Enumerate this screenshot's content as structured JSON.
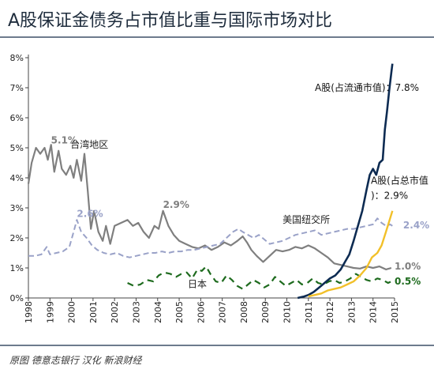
{
  "title": "A股保证金债务占市值比重与国际市场对比",
  "source": "原图 德意志银行  汉化 新浪财经",
  "colors": {
    "taiwan": "#7f7f7f",
    "nyse": "#9aa2c8",
    "japan": "#1e6b1e",
    "a_float": "#0d2b52",
    "a_total": "#f2c029",
    "axis": "#444444",
    "title_rule": "#6d7b8d"
  },
  "chart_data": {
    "type": "line",
    "title": "A股保证金债务占市值比重与国际市场对比",
    "xlabel": "",
    "ylabel": "",
    "xlim": [
      1998,
      2015
    ],
    "ylim": [
      0,
      8
    ],
    "x_ticks": [
      "1998",
      "1999",
      "2000",
      "2001",
      "2002",
      "2003",
      "2004",
      "2005",
      "2006",
      "2007",
      "2008",
      "2009",
      "2010",
      "2011",
      "2012",
      "2013",
      "2014",
      "2015"
    ],
    "y_ticks": [
      "0%",
      "1%",
      "2%",
      "3%",
      "4%",
      "5%",
      "6%",
      "7%",
      "8%"
    ],
    "grid": false,
    "series": [
      {
        "name": "台湾地区",
        "style": "solid",
        "points": [
          [
            1998,
            3.8
          ],
          [
            1998.15,
            4.5
          ],
          [
            1998.35,
            5.0
          ],
          [
            1998.55,
            4.8
          ],
          [
            1998.75,
            5.0
          ],
          [
            1998.9,
            4.6
          ],
          [
            1999.05,
            5.1
          ],
          [
            1999.2,
            4.2
          ],
          [
            1999.4,
            4.9
          ],
          [
            1999.55,
            4.3
          ],
          [
            1999.75,
            4.1
          ],
          [
            1999.95,
            4.4
          ],
          [
            2000.1,
            4.0
          ],
          [
            2000.25,
            4.6
          ],
          [
            2000.45,
            3.9
          ],
          [
            2000.6,
            4.8
          ],
          [
            2000.75,
            3.6
          ],
          [
            2000.9,
            2.3
          ],
          [
            2001.05,
            2.9
          ],
          [
            2001.25,
            2.2
          ],
          [
            2001.45,
            1.9
          ],
          [
            2001.6,
            2.4
          ],
          [
            2001.8,
            1.8
          ],
          [
            2002.0,
            2.4
          ],
          [
            2002.3,
            2.5
          ],
          [
            2002.6,
            2.6
          ],
          [
            2002.85,
            2.4
          ],
          [
            2003.1,
            2.5
          ],
          [
            2003.35,
            2.2
          ],
          [
            2003.6,
            2.0
          ],
          [
            2003.85,
            2.4
          ],
          [
            2004.05,
            2.3
          ],
          [
            2004.25,
            2.9
          ],
          [
            2004.5,
            2.4
          ],
          [
            2004.75,
            2.1
          ],
          [
            2005.0,
            1.9
          ],
          [
            2005.3,
            1.8
          ],
          [
            2005.6,
            1.7
          ],
          [
            2005.9,
            1.65
          ],
          [
            2006.2,
            1.75
          ],
          [
            2006.5,
            1.6
          ],
          [
            2006.8,
            1.7
          ],
          [
            2007.1,
            1.85
          ],
          [
            2007.4,
            1.75
          ],
          [
            2007.7,
            1.9
          ],
          [
            2007.95,
            2.05
          ],
          [
            2008.15,
            1.85
          ],
          [
            2008.35,
            1.6
          ],
          [
            2008.6,
            1.4
          ],
          [
            2008.9,
            1.2
          ],
          [
            2009.2,
            1.4
          ],
          [
            2009.5,
            1.6
          ],
          [
            2009.8,
            1.55
          ],
          [
            2010.1,
            1.6
          ],
          [
            2010.4,
            1.7
          ],
          [
            2010.7,
            1.65
          ],
          [
            2011.0,
            1.75
          ],
          [
            2011.3,
            1.65
          ],
          [
            2011.6,
            1.5
          ],
          [
            2011.9,
            1.35
          ],
          [
            2012.2,
            1.15
          ],
          [
            2012.5,
            1.1
          ],
          [
            2012.8,
            1.05
          ],
          [
            2013.1,
            1.0
          ],
          [
            2013.4,
            0.98
          ],
          [
            2013.7,
            1.05
          ],
          [
            2014.0,
            1.0
          ],
          [
            2014.3,
            1.05
          ],
          [
            2014.6,
            0.95
          ],
          [
            2014.85,
            1.0
          ]
        ]
      },
      {
        "name": "美国纽交所",
        "style": "dashed",
        "points": [
          [
            1998,
            1.4
          ],
          [
            1998.3,
            1.4
          ],
          [
            1998.6,
            1.45
          ],
          [
            1998.85,
            1.7
          ],
          [
            1999.0,
            1.45
          ],
          [
            1999.3,
            1.5
          ],
          [
            1999.6,
            1.55
          ],
          [
            1999.9,
            1.7
          ],
          [
            2000.1,
            2.2
          ],
          [
            2000.25,
            2.6
          ],
          [
            2000.45,
            2.2
          ],
          [
            2000.7,
            2.0
          ],
          [
            2000.95,
            1.75
          ],
          [
            2001.2,
            1.6
          ],
          [
            2001.5,
            1.5
          ],
          [
            2001.8,
            1.45
          ],
          [
            2002.1,
            1.5
          ],
          [
            2002.4,
            1.4
          ],
          [
            2002.7,
            1.35
          ],
          [
            2003.0,
            1.4
          ],
          [
            2003.3,
            1.45
          ],
          [
            2003.6,
            1.5
          ],
          [
            2003.9,
            1.5
          ],
          [
            2004.2,
            1.55
          ],
          [
            2004.5,
            1.5
          ],
          [
            2004.8,
            1.55
          ],
          [
            2005.1,
            1.55
          ],
          [
            2005.4,
            1.6
          ],
          [
            2005.7,
            1.6
          ],
          [
            2006.0,
            1.65
          ],
          [
            2006.3,
            1.7
          ],
          [
            2006.6,
            1.75
          ],
          [
            2006.9,
            1.8
          ],
          [
            2007.2,
            2.0
          ],
          [
            2007.5,
            2.2
          ],
          [
            2007.75,
            2.3
          ],
          [
            2007.95,
            2.2
          ],
          [
            2008.2,
            2.1
          ],
          [
            2008.45,
            2.0
          ],
          [
            2008.7,
            2.1
          ],
          [
            2008.95,
            1.95
          ],
          [
            2009.2,
            1.8
          ],
          [
            2009.5,
            1.85
          ],
          [
            2009.8,
            1.9
          ],
          [
            2010.1,
            2.0
          ],
          [
            2010.4,
            2.1
          ],
          [
            2010.7,
            2.15
          ],
          [
            2011.0,
            2.2
          ],
          [
            2011.3,
            2.25
          ],
          [
            2011.6,
            2.1
          ],
          [
            2011.9,
            2.15
          ],
          [
            2012.2,
            2.2
          ],
          [
            2012.5,
            2.25
          ],
          [
            2012.8,
            2.3
          ],
          [
            2013.1,
            2.3
          ],
          [
            2013.4,
            2.35
          ],
          [
            2013.7,
            2.4
          ],
          [
            2014.0,
            2.45
          ],
          [
            2014.2,
            2.65
          ],
          [
            2014.4,
            2.5
          ],
          [
            2014.6,
            2.4
          ],
          [
            2014.8,
            2.45
          ],
          [
            2014.9,
            2.4
          ]
        ]
      },
      {
        "name": "日本",
        "style": "dashed",
        "points": [
          [
            2002.6,
            0.5
          ],
          [
            2002.9,
            0.4
          ],
          [
            2003.2,
            0.45
          ],
          [
            2003.5,
            0.6
          ],
          [
            2003.8,
            0.55
          ],
          [
            2004.05,
            0.75
          ],
          [
            2004.3,
            0.85
          ],
          [
            2004.6,
            0.8
          ],
          [
            2004.85,
            0.7
          ],
          [
            2005.1,
            0.8
          ],
          [
            2005.35,
            0.85
          ],
          [
            2005.6,
            0.65
          ],
          [
            2005.85,
            0.95
          ],
          [
            2006.05,
            0.9
          ],
          [
            2006.25,
            1.05
          ],
          [
            2006.45,
            0.8
          ],
          [
            2006.7,
            0.55
          ],
          [
            2006.95,
            0.5
          ],
          [
            2007.2,
            0.75
          ],
          [
            2007.45,
            0.6
          ],
          [
            2007.7,
            0.4
          ],
          [
            2007.95,
            0.3
          ],
          [
            2008.2,
            0.45
          ],
          [
            2008.45,
            0.6
          ],
          [
            2008.7,
            0.5
          ],
          [
            2008.95,
            0.35
          ],
          [
            2009.2,
            0.45
          ],
          [
            2009.45,
            0.7
          ],
          [
            2009.7,
            0.55
          ],
          [
            2009.95,
            0.4
          ],
          [
            2010.2,
            0.5
          ],
          [
            2010.45,
            0.6
          ],
          [
            2010.7,
            0.45
          ],
          [
            2010.95,
            0.5
          ],
          [
            2011.2,
            0.65
          ],
          [
            2011.45,
            0.5
          ],
          [
            2011.7,
            0.45
          ],
          [
            2011.95,
            0.55
          ],
          [
            2012.2,
            0.6
          ],
          [
            2012.45,
            0.5
          ],
          [
            2012.7,
            0.55
          ],
          [
            2012.95,
            0.65
          ],
          [
            2013.2,
            0.8
          ],
          [
            2013.45,
            0.7
          ],
          [
            2013.7,
            0.6
          ],
          [
            2013.95,
            0.55
          ],
          [
            2014.2,
            0.65
          ],
          [
            2014.45,
            0.6
          ],
          [
            2014.7,
            0.5
          ],
          [
            2014.85,
            0.55
          ]
        ]
      },
      {
        "name": "A股(占流通市值)",
        "style": "solid",
        "points": [
          [
            2010.5,
            0.0
          ],
          [
            2010.8,
            0.05
          ],
          [
            2011.0,
            0.1
          ],
          [
            2011.25,
            0.2
          ],
          [
            2011.5,
            0.35
          ],
          [
            2011.75,
            0.5
          ],
          [
            2012.0,
            0.65
          ],
          [
            2012.25,
            0.75
          ],
          [
            2012.5,
            0.95
          ],
          [
            2012.7,
            1.2
          ],
          [
            2012.9,
            1.45
          ],
          [
            2013.1,
            1.9
          ],
          [
            2013.3,
            2.4
          ],
          [
            2013.5,
            2.9
          ],
          [
            2013.7,
            3.6
          ],
          [
            2013.85,
            4.1
          ],
          [
            2014.0,
            4.3
          ],
          [
            2014.15,
            4.1
          ],
          [
            2014.3,
            4.5
          ],
          [
            2014.45,
            4.6
          ],
          [
            2014.55,
            5.6
          ],
          [
            2014.65,
            6.2
          ],
          [
            2014.75,
            6.9
          ],
          [
            2014.85,
            7.5
          ],
          [
            2014.9,
            7.8
          ]
        ]
      },
      {
        "name": "A股(占总市值)",
        "style": "solid",
        "points": [
          [
            2011.0,
            0.05
          ],
          [
            2011.3,
            0.1
          ],
          [
            2011.6,
            0.15
          ],
          [
            2011.9,
            0.25
          ],
          [
            2012.2,
            0.3
          ],
          [
            2012.5,
            0.35
          ],
          [
            2012.8,
            0.45
          ],
          [
            2013.1,
            0.55
          ],
          [
            2013.4,
            0.75
          ],
          [
            2013.7,
            1.0
          ],
          [
            2013.95,
            1.35
          ],
          [
            2014.2,
            1.5
          ],
          [
            2014.4,
            1.75
          ],
          [
            2014.6,
            2.2
          ],
          [
            2014.75,
            2.55
          ],
          [
            2014.9,
            2.9
          ]
        ]
      }
    ],
    "annotations": [
      {
        "text": "5.1%",
        "x": 1999.05,
        "y": 5.15,
        "series": "台湾地区"
      },
      {
        "text": "台湾地区",
        "x": 1999.95,
        "y": 5.0,
        "series": "台湾地区"
      },
      {
        "text": "2.6%",
        "x": 2000.25,
        "y": 2.7,
        "series": "美国纽交所"
      },
      {
        "text": "2.9%",
        "x": 2004.25,
        "y": 3.0,
        "series": "台湾地区"
      },
      {
        "text": "美国纽交所",
        "x": 2009.8,
        "y": 2.5,
        "series": "美国纽交所"
      },
      {
        "text": "日本",
        "x": 2005.4,
        "y": 0.35,
        "series": "日本"
      },
      {
        "text": "A股(占流通市值)：7.8%",
        "x": 2011.3,
        "y": 6.9,
        "series": "A股(占流通市值)"
      },
      {
        "text": "A股(占总市值)：2.9%",
        "x": 2013.9,
        "y": 3.8,
        "series": "A股(占总市值)"
      },
      {
        "text": "2.4%",
        "x": 2015.4,
        "y": 2.32,
        "series": "美国纽交所"
      },
      {
        "text": "1.0%",
        "x": 2015.0,
        "y": 0.95,
        "series": "台湾地区"
      },
      {
        "text": "0.5%",
        "x": 2015.0,
        "y": 0.45,
        "series": "日本"
      }
    ]
  }
}
